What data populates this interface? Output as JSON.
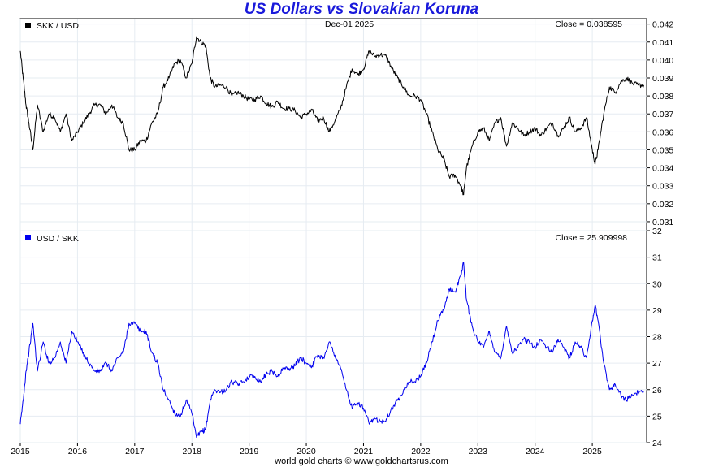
{
  "title": "US Dollars vs Slovakian Koruna",
  "date_label": "Dec-01  2025",
  "footer": "world gold charts © www.goldchartsrus.com",
  "colors": {
    "title": "#1a1adb",
    "top_series": "#000000",
    "bottom_series": "#0000ee",
    "grid": "#e6ecf2",
    "frame": "#000000"
  },
  "chart_data": [
    {
      "type": "line",
      "legend": "SKK / USD",
      "close_label": "Close = 0.038595",
      "x_ticks": [
        "2015",
        "2016",
        "2017",
        "2018",
        "2019",
        "2020",
        "2021",
        "2022",
        "2023",
        "2024",
        "2025"
      ],
      "y_ticks": [
        "0.031",
        "0.032",
        "0.033",
        "0.034",
        "0.035",
        "0.036",
        "0.037",
        "0.038",
        "0.039",
        "0.040",
        "0.041",
        "0.042"
      ],
      "xlim": [
        2015.0,
        2025.95
      ],
      "ylim": [
        0.0305,
        0.0423
      ],
      "x": [
        2015.0,
        2015.05,
        2015.1,
        2015.15,
        2015.22,
        2015.3,
        2015.4,
        2015.5,
        2015.6,
        2015.7,
        2015.8,
        2015.9,
        2016.0,
        2016.1,
        2016.2,
        2016.3,
        2016.4,
        2016.5,
        2016.6,
        2016.7,
        2016.8,
        2016.9,
        2017.0,
        2017.1,
        2017.2,
        2017.3,
        2017.4,
        2017.5,
        2017.6,
        2017.7,
        2017.8,
        2017.9,
        2018.0,
        2018.08,
        2018.16,
        2018.24,
        2018.32,
        2018.4,
        2018.5,
        2018.6,
        2018.7,
        2018.8,
        2018.9,
        2019.0,
        2019.1,
        2019.2,
        2019.3,
        2019.4,
        2019.5,
        2019.6,
        2019.7,
        2019.8,
        2019.9,
        2020.0,
        2020.1,
        2020.2,
        2020.3,
        2020.4,
        2020.5,
        2020.6,
        2020.7,
        2020.8,
        2020.9,
        2021.0,
        2021.1,
        2021.2,
        2021.3,
        2021.4,
        2021.5,
        2021.6,
        2021.7,
        2021.8,
        2021.9,
        2022.0,
        2022.1,
        2022.2,
        2022.3,
        2022.4,
        2022.5,
        2022.6,
        2022.7,
        2022.75,
        2022.8,
        2022.9,
        2023.0,
        2023.1,
        2023.2,
        2023.3,
        2023.4,
        2023.5,
        2023.6,
        2023.7,
        2023.8,
        2023.9,
        2024.0,
        2024.1,
        2024.2,
        2024.3,
        2024.4,
        2024.5,
        2024.6,
        2024.7,
        2024.8,
        2024.9,
        2025.0,
        2025.05,
        2025.1,
        2025.2,
        2025.3,
        2025.4,
        2025.5,
        2025.6,
        2025.7,
        2025.8,
        2025.9
      ],
      "values": [
        0.0405,
        0.039,
        0.0375,
        0.0365,
        0.035,
        0.0375,
        0.036,
        0.037,
        0.0368,
        0.036,
        0.037,
        0.0355,
        0.036,
        0.0365,
        0.037,
        0.0375,
        0.0375,
        0.037,
        0.0375,
        0.0368,
        0.0365,
        0.035,
        0.035,
        0.0355,
        0.0355,
        0.0365,
        0.037,
        0.0385,
        0.039,
        0.0398,
        0.04,
        0.039,
        0.0398,
        0.0413,
        0.041,
        0.0408,
        0.039,
        0.0385,
        0.0386,
        0.0385,
        0.038,
        0.0382,
        0.038,
        0.0378,
        0.0378,
        0.038,
        0.0376,
        0.0374,
        0.0377,
        0.0373,
        0.0373,
        0.0372,
        0.0368,
        0.037,
        0.0372,
        0.0366,
        0.0368,
        0.036,
        0.0366,
        0.0373,
        0.0385,
        0.0395,
        0.0392,
        0.0395,
        0.0405,
        0.0402,
        0.0403,
        0.0402,
        0.0395,
        0.039,
        0.0385,
        0.038,
        0.038,
        0.0378,
        0.037,
        0.036,
        0.035,
        0.0345,
        0.0335,
        0.0336,
        0.033,
        0.0325,
        0.034,
        0.0352,
        0.036,
        0.0362,
        0.0355,
        0.0365,
        0.0368,
        0.0352,
        0.0365,
        0.0362,
        0.0358,
        0.036,
        0.0362,
        0.0358,
        0.0362,
        0.0365,
        0.0358,
        0.0362,
        0.0368,
        0.036,
        0.0362,
        0.0368,
        0.035,
        0.0342,
        0.035,
        0.037,
        0.0385,
        0.0382,
        0.0388,
        0.039,
        0.0387,
        0.0386,
        0.0386
      ]
    },
    {
      "type": "line",
      "legend": "USD / SKK",
      "close_label": "Close = 25.909998",
      "x_ticks": [
        "2015",
        "2016",
        "2017",
        "2018",
        "2019",
        "2020",
        "2021",
        "2022",
        "2023",
        "2024",
        "2025"
      ],
      "y_ticks": [
        "24",
        "25",
        "26",
        "27",
        "28",
        "29",
        "30",
        "31",
        "32"
      ],
      "xlim": [
        2015.0,
        2025.95
      ],
      "ylim": [
        24.0,
        32.0
      ],
      "x": [
        2015.0,
        2015.05,
        2015.1,
        2015.15,
        2015.22,
        2015.3,
        2015.4,
        2015.5,
        2015.6,
        2015.7,
        2015.8,
        2015.9,
        2016.0,
        2016.1,
        2016.2,
        2016.3,
        2016.4,
        2016.5,
        2016.6,
        2016.7,
        2016.8,
        2016.9,
        2017.0,
        2017.1,
        2017.2,
        2017.3,
        2017.4,
        2017.5,
        2017.6,
        2017.7,
        2017.8,
        2017.9,
        2018.0,
        2018.08,
        2018.16,
        2018.24,
        2018.32,
        2018.4,
        2018.5,
        2018.6,
        2018.7,
        2018.8,
        2018.9,
        2019.0,
        2019.1,
        2019.2,
        2019.3,
        2019.4,
        2019.5,
        2019.6,
        2019.7,
        2019.8,
        2019.9,
        2020.0,
        2020.1,
        2020.2,
        2020.3,
        2020.4,
        2020.5,
        2020.6,
        2020.7,
        2020.8,
        2020.9,
        2021.0,
        2021.1,
        2021.2,
        2021.3,
        2021.4,
        2021.5,
        2021.6,
        2021.7,
        2021.8,
        2021.9,
        2022.0,
        2022.1,
        2022.2,
        2022.3,
        2022.4,
        2022.5,
        2022.6,
        2022.7,
        2022.75,
        2022.8,
        2022.9,
        2023.0,
        2023.1,
        2023.2,
        2023.3,
        2023.4,
        2023.5,
        2023.6,
        2023.7,
        2023.8,
        2023.9,
        2024.0,
        2024.1,
        2024.2,
        2024.3,
        2024.4,
        2024.5,
        2024.6,
        2024.7,
        2024.8,
        2024.9,
        2025.0,
        2025.05,
        2025.1,
        2025.2,
        2025.3,
        2025.4,
        2025.5,
        2025.6,
        2025.7,
        2025.8,
        2025.9
      ],
      "values": [
        24.7,
        25.6,
        26.7,
        27.4,
        28.5,
        26.7,
        27.8,
        27.0,
        27.2,
        27.8,
        27.0,
        28.2,
        27.8,
        27.4,
        27.0,
        26.7,
        26.7,
        27.0,
        26.7,
        27.2,
        27.4,
        28.5,
        28.5,
        28.2,
        28.2,
        27.4,
        27.0,
        26.0,
        25.6,
        25.1,
        25.0,
        25.6,
        25.1,
        24.2,
        24.4,
        24.5,
        25.6,
        26.0,
        25.9,
        26.0,
        26.3,
        26.2,
        26.3,
        26.5,
        26.5,
        26.3,
        26.6,
        26.7,
        26.5,
        26.8,
        26.8,
        26.9,
        27.2,
        27.0,
        26.9,
        27.3,
        27.2,
        27.8,
        27.3,
        26.8,
        26.0,
        25.3,
        25.5,
        25.3,
        24.7,
        24.9,
        24.8,
        24.9,
        25.3,
        25.6,
        26.0,
        26.3,
        26.3,
        26.5,
        27.0,
        27.8,
        28.6,
        29.0,
        29.8,
        29.7,
        30.3,
        30.8,
        29.4,
        28.4,
        27.8,
        27.6,
        28.2,
        27.4,
        27.2,
        28.4,
        27.4,
        27.6,
        27.9,
        27.8,
        27.6,
        27.9,
        27.6,
        27.4,
        27.9,
        27.6,
        27.2,
        27.8,
        27.6,
        27.2,
        28.6,
        29.2,
        28.6,
        27.0,
        26.0,
        26.2,
        25.8,
        25.6,
        25.8,
        25.9,
        25.9
      ]
    }
  ]
}
